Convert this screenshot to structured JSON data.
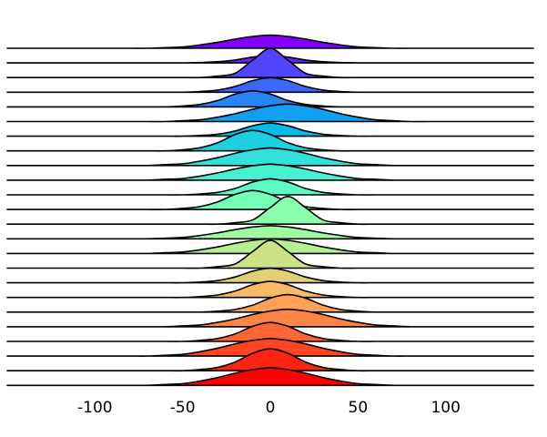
{
  "chart_data": {
    "type": "ridgeline",
    "x": [
      -150,
      -140,
      -130,
      -120,
      -110,
      -100,
      -90,
      -80,
      -70,
      -60,
      -50,
      -40,
      -30,
      -20,
      -10,
      0,
      10,
      20,
      30,
      40,
      50,
      60,
      70,
      80,
      90,
      100,
      110,
      120,
      130,
      140,
      150
    ],
    "xlim": [
      -150,
      150
    ],
    "xticks": [
      -100,
      -50,
      0,
      50,
      100
    ],
    "series": [
      {
        "color": "#8000ff",
        "values": [
          0,
          0,
          0,
          0,
          0,
          0,
          0,
          0,
          0,
          0.04,
          0.09,
          0.23,
          0.41,
          0.63,
          0.81,
          0.9,
          0.81,
          0.63,
          0.41,
          0.23,
          0.09,
          0.04,
          0,
          0,
          0,
          0,
          0,
          0,
          0,
          0,
          0
        ]
      },
      {
        "color": "#6923fe",
        "values": [
          0,
          0,
          0,
          0,
          0,
          0,
          0,
          0,
          0,
          0,
          0,
          0.03,
          0.08,
          0.2,
          0.4,
          0.5,
          0.4,
          0.2,
          0.08,
          0.03,
          0,
          0,
          0,
          0,
          0,
          0,
          0,
          0,
          0,
          0,
          0
        ]
      },
      {
        "color": "#5345fd",
        "values": [
          0,
          0,
          0,
          0,
          0,
          0,
          0,
          0,
          0,
          0,
          0,
          0,
          0.1,
          0.3,
          1.2,
          2,
          1.2,
          0.3,
          0.1,
          0,
          0,
          0,
          0,
          0,
          0,
          0,
          0,
          0,
          0,
          0,
          0
        ]
      },
      {
        "color": "#3d66fa",
        "values": [
          0,
          0,
          0,
          0,
          0,
          0,
          0,
          0,
          0,
          0,
          0,
          0.05,
          0.15,
          0.4,
          0.8,
          1,
          0.8,
          0.4,
          0.15,
          0.05,
          0,
          0,
          0,
          0,
          0,
          0,
          0,
          0,
          0,
          0,
          0
        ]
      },
      {
        "color": "#2785f6",
        "values": [
          0,
          0,
          0,
          0,
          0,
          0,
          0,
          0,
          0,
          0,
          0.06,
          0.17,
          0.44,
          0.88,
          1.1,
          0.88,
          0.44,
          0.17,
          0.06,
          0,
          0,
          0,
          0,
          0,
          0,
          0,
          0,
          0,
          0,
          0,
          0
        ]
      },
      {
        "color": "#11a1f0",
        "values": [
          0,
          0,
          0,
          0,
          0,
          0,
          0,
          0,
          0,
          0,
          0.06,
          0.12,
          0.3,
          0.54,
          0.84,
          1.08,
          1.2,
          1.08,
          0.84,
          0.54,
          0.3,
          0.12,
          0.06,
          0,
          0,
          0,
          0,
          0,
          0,
          0,
          0
        ]
      },
      {
        "color": "#06bae9",
        "values": [
          0,
          0,
          0,
          0,
          0,
          0,
          0,
          0,
          0,
          0,
          0,
          0.05,
          0.14,
          0.36,
          0.72,
          0.9,
          0.72,
          0.36,
          0.14,
          0.05,
          0,
          0,
          0,
          0,
          0,
          0,
          0,
          0,
          0,
          0,
          0
        ]
      },
      {
        "color": "#1cd0e2",
        "values": [
          0,
          0,
          0,
          0,
          0,
          0,
          0,
          0,
          0,
          0,
          0.07,
          0.21,
          0.56,
          1.12,
          1.4,
          1.12,
          0.56,
          0.21,
          0.07,
          0,
          0,
          0,
          0,
          0,
          0,
          0,
          0,
          0,
          0,
          0,
          0
        ]
      },
      {
        "color": "#32e2da",
        "values": [
          0,
          0,
          0,
          0,
          0,
          0,
          0,
          0,
          0,
          0.06,
          0.12,
          0.3,
          0.54,
          0.84,
          1.08,
          1.2,
          1.08,
          0.84,
          0.54,
          0.3,
          0.12,
          0.06,
          0,
          0,
          0,
          0,
          0,
          0,
          0,
          0,
          0
        ]
      },
      {
        "color": "#48f0d0",
        "values": [
          0,
          0,
          0,
          0,
          0,
          0,
          0,
          0,
          0,
          0.06,
          0.11,
          0.28,
          0.5,
          0.77,
          0.99,
          1.1,
          0.99,
          0.77,
          0.5,
          0.28,
          0.11,
          0.06,
          0,
          0,
          0,
          0,
          0,
          0,
          0,
          0,
          0
        ]
      },
      {
        "color": "#5efac5",
        "values": [
          0,
          0,
          0,
          0,
          0,
          0,
          0,
          0,
          0,
          0,
          0,
          0.06,
          0.17,
          0.44,
          0.88,
          1.1,
          0.88,
          0.44,
          0.17,
          0.06,
          0,
          0,
          0,
          0,
          0,
          0,
          0,
          0,
          0,
          0,
          0
        ]
      },
      {
        "color": "#74feba",
        "values": [
          0,
          0,
          0,
          0,
          0,
          0,
          0,
          0,
          0,
          0,
          0.07,
          0.2,
          0.52,
          1.04,
          1.3,
          1.04,
          0.52,
          0.2,
          0.07,
          0,
          0,
          0,
          0,
          0,
          0,
          0,
          0,
          0,
          0,
          0,
          0
        ]
      },
      {
        "color": "#8bfead",
        "values": [
          0,
          0,
          0,
          0,
          0,
          0,
          0,
          0,
          0,
          0,
          0,
          0,
          0,
          0.1,
          0.29,
          1.14,
          1.9,
          1.14,
          0.29,
          0.1,
          0,
          0,
          0,
          0,
          0,
          0,
          0,
          0,
          0,
          0,
          0
        ]
      },
      {
        "color": "#a1faa0",
        "values": [
          0,
          0,
          0,
          0,
          0,
          0,
          0,
          0,
          0,
          0.04,
          0.09,
          0.23,
          0.41,
          0.63,
          0.81,
          0.9,
          0.81,
          0.63,
          0.41,
          0.23,
          0.09,
          0.04,
          0,
          0,
          0,
          0,
          0,
          0,
          0,
          0,
          0
        ]
      },
      {
        "color": "#b7f093",
        "values": [
          0,
          0,
          0,
          0,
          0,
          0,
          0,
          0,
          0,
          0.05,
          0.1,
          0.25,
          0.45,
          0.7,
          0.9,
          1,
          0.9,
          0.7,
          0.45,
          0.25,
          0.1,
          0.05,
          0,
          0,
          0,
          0,
          0,
          0,
          0,
          0,
          0
        ]
      },
      {
        "color": "#cde285",
        "values": [
          0,
          0,
          0,
          0,
          0,
          0,
          0,
          0,
          0,
          0,
          0,
          0,
          0.1,
          0.29,
          1.14,
          1.9,
          1.14,
          0.29,
          0.1,
          0,
          0,
          0,
          0,
          0,
          0,
          0,
          0,
          0,
          0,
          0,
          0
        ]
      },
      {
        "color": "#e3d076",
        "values": [
          0,
          0,
          0,
          0,
          0,
          0,
          0,
          0,
          0,
          0,
          0,
          0.05,
          0.15,
          0.4,
          0.8,
          1,
          0.8,
          0.4,
          0.15,
          0.05,
          0,
          0,
          0,
          0,
          0,
          0,
          0,
          0,
          0,
          0,
          0
        ]
      },
      {
        "color": "#f9ba67",
        "values": [
          0,
          0,
          0,
          0,
          0,
          0,
          0,
          0,
          0,
          0,
          0,
          0.06,
          0.17,
          0.44,
          0.88,
          1.1,
          0.88,
          0.44,
          0.17,
          0.06,
          0,
          0,
          0,
          0,
          0,
          0,
          0,
          0,
          0,
          0,
          0
        ]
      },
      {
        "color": "#ffa157",
        "values": [
          0,
          0,
          0,
          0,
          0,
          0,
          0,
          0,
          0,
          0,
          0,
          0,
          0.06,
          0.18,
          0.48,
          0.96,
          1.2,
          0.96,
          0.48,
          0.18,
          0.06,
          0,
          0,
          0,
          0,
          0,
          0,
          0,
          0,
          0,
          0
        ]
      },
      {
        "color": "#ff8545",
        "values": [
          0,
          0,
          0,
          0,
          0,
          0,
          0,
          0,
          0,
          0,
          0.06,
          0.12,
          0.3,
          0.54,
          0.84,
          1.08,
          1.2,
          1.08,
          0.84,
          0.54,
          0.3,
          0.12,
          0.06,
          0,
          0,
          0,
          0,
          0,
          0,
          0,
          0
        ]
      },
      {
        "color": "#ff6634",
        "values": [
          0,
          0,
          0,
          0,
          0,
          0,
          0,
          0,
          0,
          0,
          0,
          0.07,
          0.2,
          0.52,
          1.04,
          1.3,
          1.04,
          0.52,
          0.2,
          0.07,
          0,
          0,
          0,
          0,
          0,
          0,
          0,
          0,
          0,
          0,
          0
        ]
      },
      {
        "color": "#ff4523",
        "values": [
          0,
          0,
          0,
          0,
          0,
          0,
          0,
          0,
          0,
          0.06,
          0.12,
          0.3,
          0.54,
          0.84,
          1.08,
          1.2,
          1.08,
          0.84,
          0.54,
          0.3,
          0.12,
          0.06,
          0,
          0,
          0,
          0,
          0,
          0,
          0,
          0,
          0
        ]
      },
      {
        "color": "#ff2311",
        "values": [
          0,
          0,
          0,
          0,
          0,
          0,
          0,
          0,
          0,
          0,
          0,
          0.08,
          0.23,
          0.6,
          1.2,
          1.5,
          1.2,
          0.6,
          0.23,
          0.08,
          0,
          0,
          0,
          0,
          0,
          0,
          0,
          0,
          0,
          0,
          0
        ]
      },
      {
        "color": "#ff0000",
        "values": [
          0,
          0,
          0,
          0,
          0,
          0,
          0,
          0,
          0,
          0.06,
          0.12,
          0.3,
          0.54,
          0.84,
          1.08,
          1.2,
          1.08,
          0.84,
          0.54,
          0.3,
          0.12,
          0.06,
          0,
          0,
          0,
          0,
          0,
          0,
          0,
          0,
          0
        ]
      }
    ]
  }
}
